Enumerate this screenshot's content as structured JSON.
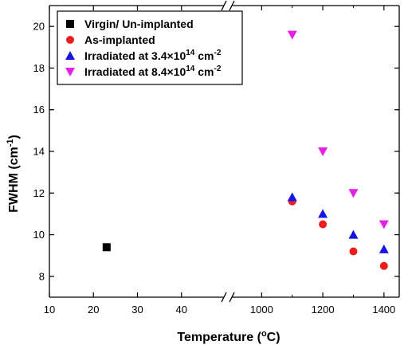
{
  "chart_data": {
    "type": "scatter",
    "xlabel": "Temperature (°C)",
    "xlabel_parts": {
      "before": "Temperature (",
      "sup": "o",
      "after": "C)"
    },
    "ylabel": "FWHM (cm⁻¹)",
    "ylabel_parts": {
      "before": "FWHM (cm",
      "sup": "-1",
      "after": ")"
    },
    "x_axis_broken": true,
    "x_segments": [
      {
        "range": [
          10,
          50
        ],
        "ticks": [
          10,
          20,
          30,
          40
        ],
        "tick_labels": [
          "10",
          "20",
          "30",
          "40"
        ]
      },
      {
        "range": [
          900,
          1450
        ],
        "ticks": [
          1000,
          1200,
          1400
        ],
        "minor_ticks": [
          1100,
          1300
        ],
        "tick_labels": [
          "1000",
          "1200",
          "1400"
        ]
      }
    ],
    "ylim": [
      7,
      21
    ],
    "yticks": [
      8,
      10,
      12,
      14,
      16,
      18,
      20
    ],
    "ytick_labels": [
      "8",
      "10",
      "12",
      "14",
      "16",
      "18",
      "20"
    ],
    "legend_position": "top-left",
    "series": [
      {
        "name": "Virgin/ Un-implanted",
        "legend_parts": {
          "before": "Virgin/ Un-implanted"
        },
        "marker": "square",
        "color": "#000000",
        "points": [
          [
            23,
            9.4
          ]
        ]
      },
      {
        "name": "As-implanted",
        "legend_parts": {
          "before": "As-implanted"
        },
        "marker": "circle",
        "color": "#ee1c1c",
        "points": [
          [
            1100,
            11.6
          ],
          [
            1200,
            10.5
          ],
          [
            1300,
            9.2
          ],
          [
            1400,
            8.5
          ]
        ]
      },
      {
        "name": "Irradiated at 3.4×10¹⁴ cm⁻²",
        "legend_parts": {
          "before": "Irradiated at 3.4×10",
          "sup1": "14",
          "mid": " cm",
          "sup2": "-2"
        },
        "marker": "triangle-up",
        "color": "#1414e6",
        "points": [
          [
            1100,
            11.8
          ],
          [
            1200,
            11.0
          ],
          [
            1300,
            10.0
          ],
          [
            1400,
            9.3
          ]
        ]
      },
      {
        "name": "Irradiated at 8.4×10¹⁴ cm⁻²",
        "legend_parts": {
          "before": "Irradiated at 8.4×10",
          "sup1": "14",
          "mid": " cm",
          "sup2": "-2"
        },
        "marker": "triangle-down",
        "color": "#e61ee6",
        "points": [
          [
            1100,
            19.6
          ],
          [
            1200,
            14.0
          ],
          [
            1300,
            12.0
          ],
          [
            1400,
            10.5
          ]
        ]
      }
    ]
  }
}
